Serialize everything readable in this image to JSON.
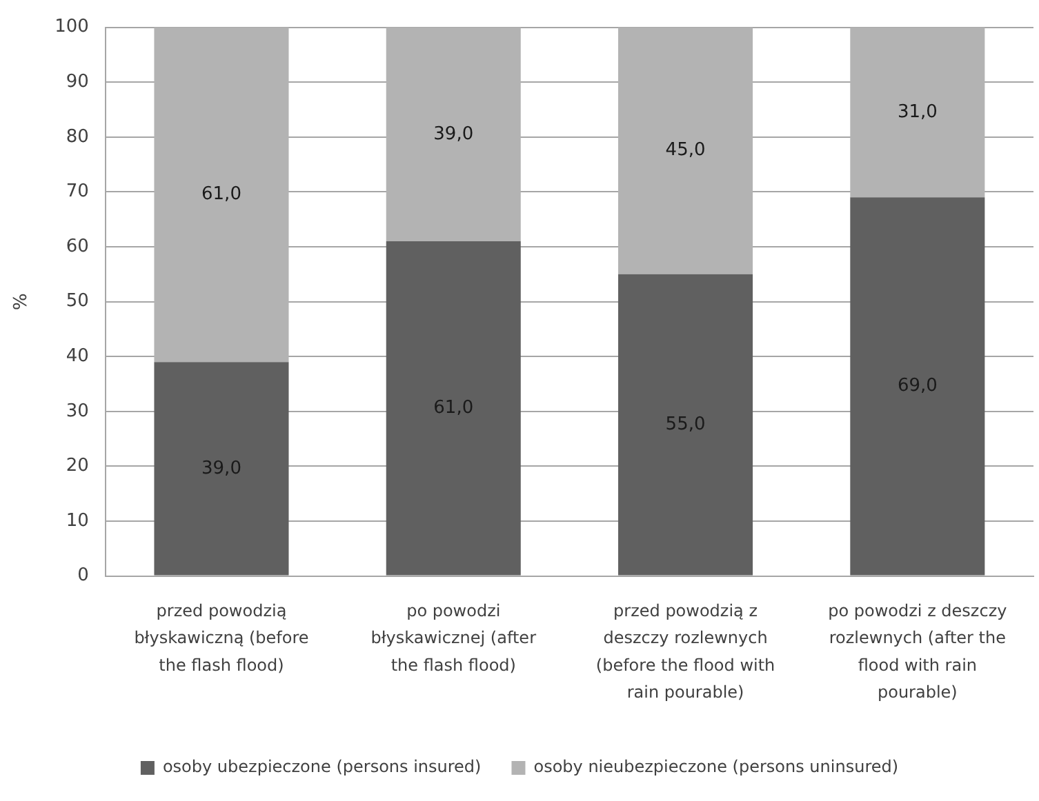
{
  "chart_data": {
    "type": "bar",
    "stacked": true,
    "ylabel": "%",
    "categories": [
      "przed powodzią błyskawiczną (before the flash flood)",
      "po powodzi błyskawicznej (after the flash flood)",
      "przed powodzią z deszczy rozlewnych (before the flood with rain pourable)",
      "po powodzi z deszczy rozlewnych (after the flood with rain pourable)"
    ],
    "series": [
      {
        "name": "osoby ubezpieczone (persons insured)",
        "color": "#606060",
        "values": [
          39,
          61,
          55,
          69
        ],
        "value_labels": [
          "39,0",
          "61,0",
          "55,0",
          "69,0"
        ]
      },
      {
        "name": "osoby nieubezpieczone (persons uninsured)",
        "color": "#b3b3b3",
        "values": [
          61,
          39,
          45,
          31
        ],
        "value_labels": [
          "61,0",
          "39,0",
          "45,0",
          "31,0"
        ]
      }
    ],
    "ylim": [
      0,
      100
    ],
    "yticks": [
      0,
      10,
      20,
      30,
      40,
      50,
      60,
      70,
      80,
      90,
      100
    ],
    "grid": "y",
    "legend": "bottom"
  }
}
